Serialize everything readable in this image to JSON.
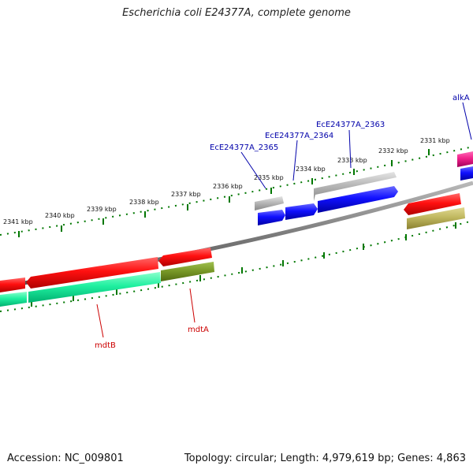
{
  "title": "Escherichia coli E24377A, complete genome",
  "footer": {
    "accession": "Accession: NC_009801",
    "summary": "Topology: circular; Length: 4,979,619 bp; Genes: 4,863"
  },
  "ticks": [
    "2331 kbp",
    "2332 kbp",
    "2333 kbp",
    "2334 kbp",
    "2335 kbp",
    "2336 kbp",
    "2337 kbp",
    "2338 kbp",
    "2339 kbp",
    "2340 kbp",
    "2341 kbp"
  ],
  "gene_labels": {
    "alkA": "alkA",
    "ec2363": "EcE24377A_2363",
    "ec2364": "EcE24377A_2364",
    "ec2365": "EcE24377A_2365",
    "mdtB": "mdtB",
    "mdtA": "mdtA"
  },
  "colors": {
    "blue_label": "#0000aa",
    "red_label": "#cc0000",
    "tick_green": "#007700",
    "backbone": "#808080",
    "red_gene": "#e80000",
    "blue_gene": "#0000e0",
    "grey_gene": "#a8a8a8",
    "pink_gene": "#e0007a",
    "teal_gene": "#00e08a",
    "olive_gene": "#6f8a18",
    "khaki_gene": "#b0a850"
  }
}
